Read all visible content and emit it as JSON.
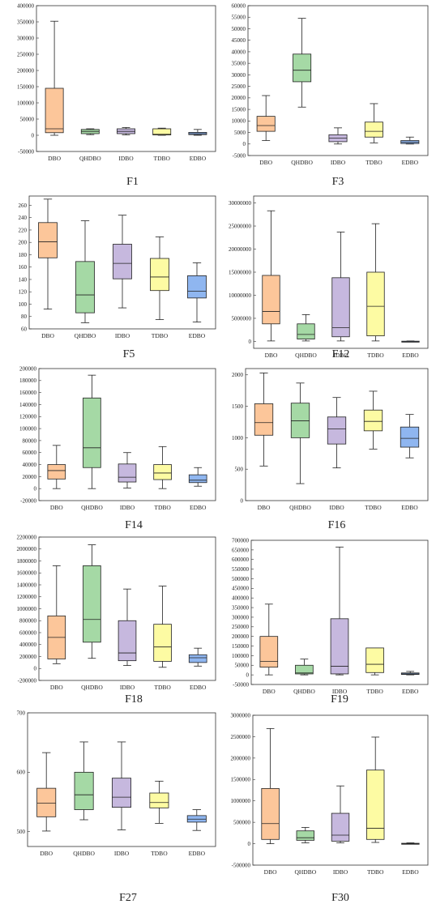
{
  "chart_data": [
    {
      "type": "box",
      "caption": "F1",
      "categories": [
        "DBO",
        "QHDBO",
        "IDBO",
        "TDBO",
        "EDBO"
      ],
      "yticks": [
        -50000,
        0,
        50000,
        100000,
        150000,
        200000,
        250000,
        300000,
        350000,
        400000
      ],
      "ylim": [
        -50000,
        400000
      ],
      "boxes": [
        {
          "name": "DBO",
          "min": 0,
          "q1": 8000,
          "median": 20000,
          "q3": 145000,
          "max": 352000
        },
        {
          "name": "QHDBO",
          "min": 2000,
          "q1": 5000,
          "median": 12000,
          "q3": 18000,
          "max": 20000
        },
        {
          "name": "IDBO",
          "min": 1000,
          "q1": 5000,
          "median": 12000,
          "q3": 20000,
          "max": 24000
        },
        {
          "name": "TDBO",
          "min": 0,
          "q1": 1000,
          "median": 3000,
          "q3": 20000,
          "max": 22000
        },
        {
          "name": "EDBO",
          "min": 0,
          "q1": 2000,
          "median": 5000,
          "q3": 9000,
          "max": 18000
        }
      ]
    },
    {
      "type": "box",
      "caption": "F3",
      "categories": [
        "DBO",
        "QHDBO",
        "IDBO",
        "TDBO",
        "EDBO"
      ],
      "yticks": [
        -5000,
        0,
        5000,
        10000,
        15000,
        20000,
        25000,
        30000,
        35000,
        40000,
        45000,
        50000,
        55000,
        60000
      ],
      "ylim": [
        -5000,
        60000
      ],
      "boxes": [
        {
          "name": "DBO",
          "min": 1500,
          "q1": 5500,
          "median": 8000,
          "q3": 12000,
          "max": 21000
        },
        {
          "name": "QHDBO",
          "min": 16000,
          "q1": 27000,
          "median": 32000,
          "q3": 39000,
          "max": 54500
        },
        {
          "name": "IDBO",
          "min": 0,
          "q1": 1000,
          "median": 2500,
          "q3": 4000,
          "max": 7000
        },
        {
          "name": "TDBO",
          "min": 500,
          "q1": 3000,
          "median": 5500,
          "q3": 9500,
          "max": 17500
        },
        {
          "name": "EDBO",
          "min": 0,
          "q1": 200,
          "median": 800,
          "q3": 1500,
          "max": 3000
        }
      ]
    },
    {
      "type": "box",
      "caption": "F5",
      "categories": [
        "DBO",
        "QHDBO",
        "IDBO",
        "TDBO",
        "EDBO"
      ],
      "yticks": [
        60,
        80,
        100,
        120,
        140,
        160,
        180,
        200,
        220,
        240,
        260
      ],
      "ylim": [
        60,
        275
      ],
      "boxes": [
        {
          "name": "DBO",
          "min": 92,
          "q1": 175,
          "median": 201,
          "q3": 232,
          "max": 270
        },
        {
          "name": "QHDBO",
          "min": 70,
          "q1": 86,
          "median": 115,
          "q3": 169,
          "max": 235
        },
        {
          "name": "IDBO",
          "min": 94,
          "q1": 141,
          "median": 166,
          "q3": 197,
          "max": 244
        },
        {
          "name": "TDBO",
          "min": 75,
          "q1": 122,
          "median": 144,
          "q3": 174,
          "max": 209
        },
        {
          "name": "EDBO",
          "min": 71,
          "q1": 110,
          "median": 121,
          "q3": 146,
          "max": 167
        }
      ]
    },
    {
      "type": "box",
      "caption": "F12",
      "categories": [
        "DBO",
        "QHDBO",
        "IDBO",
        "TDBO",
        "EDBO"
      ],
      "yticks": [
        0,
        5000000,
        10000000,
        15000000,
        20000000,
        25000000,
        30000000
      ],
      "ylim": [
        -1500000,
        31500000
      ],
      "boxes": [
        {
          "name": "DBO",
          "min": 100000,
          "q1": 3800000,
          "median": 6500000,
          "q3": 14300000,
          "max": 28300000
        },
        {
          "name": "QHDBO",
          "min": 100000,
          "q1": 500000,
          "median": 1500000,
          "q3": 3800000,
          "max": 5800000
        },
        {
          "name": "IDBO",
          "min": 100000,
          "q1": 1000000,
          "median": 3000000,
          "q3": 13800000,
          "max": 23700000
        },
        {
          "name": "TDBO",
          "min": 100000,
          "q1": 1200000,
          "median": 7600000,
          "q3": 15000000,
          "max": 25500000
        },
        {
          "name": "EDBO",
          "min": 0,
          "q1": 0,
          "median": 0,
          "q3": 50000,
          "max": 100000
        }
      ]
    },
    {
      "type": "box",
      "caption": "F14",
      "categories": [
        "DBO",
        "QHDBO",
        "IDBO",
        "TDBO",
        "EDBO"
      ],
      "yticks": [
        -20000,
        0,
        20000,
        40000,
        60000,
        80000,
        100000,
        120000,
        140000,
        160000,
        180000,
        200000
      ],
      "ylim": [
        -20000,
        200000
      ],
      "boxes": [
        {
          "name": "DBO",
          "min": 0,
          "q1": 16000,
          "median": 30000,
          "q3": 40000,
          "max": 72000
        },
        {
          "name": "QHDBO",
          "min": 0,
          "q1": 35000,
          "median": 68000,
          "q3": 151000,
          "max": 189000
        },
        {
          "name": "IDBO",
          "min": 1000,
          "q1": 11000,
          "median": 19000,
          "q3": 41000,
          "max": 60000
        },
        {
          "name": "TDBO",
          "min": 0,
          "q1": 15000,
          "median": 26000,
          "q3": 40000,
          "max": 70000
        },
        {
          "name": "EDBO",
          "min": 4000,
          "q1": 10000,
          "median": 14000,
          "q3": 23000,
          "max": 35000
        }
      ]
    },
    {
      "type": "box",
      "caption": "F16",
      "categories": [
        "DBO",
        "QHDBO",
        "IDBO",
        "TDBO",
        "EDBO"
      ],
      "yticks": [
        0,
        500,
        1000,
        1500,
        2000
      ],
      "ylim": [
        0,
        2100
      ],
      "boxes": [
        {
          "name": "DBO",
          "min": 550,
          "q1": 1040,
          "median": 1240,
          "q3": 1540,
          "max": 2030
        },
        {
          "name": "QHDBO",
          "min": 270,
          "q1": 1000,
          "median": 1270,
          "q3": 1550,
          "max": 1870
        },
        {
          "name": "IDBO",
          "min": 520,
          "q1": 900,
          "median": 1140,
          "q3": 1330,
          "max": 1640
        },
        {
          "name": "TDBO",
          "min": 820,
          "q1": 1110,
          "median": 1260,
          "q3": 1440,
          "max": 1740
        },
        {
          "name": "EDBO",
          "min": 680,
          "q1": 850,
          "median": 990,
          "q3": 1170,
          "max": 1370
        }
      ]
    },
    {
      "type": "box",
      "caption": "F18",
      "categories": [
        "DBO",
        "QHDBO",
        "IDBO",
        "TDBO",
        "EDBO"
      ],
      "yticks": [
        -200000,
        0,
        200000,
        400000,
        600000,
        800000,
        1000000,
        1200000,
        1400000,
        1600000,
        1800000,
        2000000,
        2200000
      ],
      "ylim": [
        -200000,
        2200000
      ],
      "boxes": [
        {
          "name": "DBO",
          "min": 80000,
          "q1": 160000,
          "median": 520000,
          "q3": 880000,
          "max": 1720000
        },
        {
          "name": "QHDBO",
          "min": 170000,
          "q1": 440000,
          "median": 820000,
          "q3": 1720000,
          "max": 2070000
        },
        {
          "name": "IDBO",
          "min": 50000,
          "q1": 130000,
          "median": 260000,
          "q3": 800000,
          "max": 1330000
        },
        {
          "name": "TDBO",
          "min": 20000,
          "q1": 120000,
          "median": 360000,
          "q3": 740000,
          "max": 1380000
        },
        {
          "name": "EDBO",
          "min": 40000,
          "q1": 100000,
          "median": 180000,
          "q3": 230000,
          "max": 340000
        }
      ]
    },
    {
      "type": "box",
      "caption": "F19",
      "categories": [
        "DBO",
        "QHDBO",
        "IDBO",
        "TDBO",
        "EDBO"
      ],
      "yticks": [
        -50000,
        0,
        50000,
        100000,
        150000,
        200000,
        250000,
        300000,
        350000,
        400000,
        450000,
        500000,
        550000,
        600000,
        650000,
        700000
      ],
      "ylim": [
        -50000,
        700000
      ],
      "boxes": [
        {
          "name": "DBO",
          "min": 0,
          "q1": 40000,
          "median": 70000,
          "q3": 200000,
          "max": 368000
        },
        {
          "name": "QHDBO",
          "min": 0,
          "q1": 5000,
          "median": 10000,
          "q3": 50000,
          "max": 82000
        },
        {
          "name": "IDBO",
          "min": 0,
          "q1": 5000,
          "median": 45000,
          "q3": 292000,
          "max": 665000
        },
        {
          "name": "TDBO",
          "min": 0,
          "q1": 12000,
          "median": 55000,
          "q3": 140000,
          "max": 140000
        },
        {
          "name": "EDBO",
          "min": 0,
          "q1": 2000,
          "median": 5000,
          "q3": 10000,
          "max": 18000
        }
      ]
    },
    {
      "type": "box",
      "caption": "F27",
      "categories": [
        "DBO",
        "QHDBO",
        "IDBO",
        "TDBO",
        "EDBO"
      ],
      "yticks": [
        500,
        600,
        700
      ],
      "ylim": [
        475,
        700
      ],
      "boxes": [
        {
          "name": "DBO",
          "min": 501,
          "q1": 525,
          "median": 548,
          "q3": 573,
          "max": 633
        },
        {
          "name": "QHDBO",
          "min": 520,
          "q1": 537,
          "median": 562,
          "q3": 600,
          "max": 651
        },
        {
          "name": "IDBO",
          "min": 503,
          "q1": 541,
          "median": 558,
          "q3": 590,
          "max": 651
        },
        {
          "name": "TDBO",
          "min": 514,
          "q1": 540,
          "median": 549,
          "q3": 565,
          "max": 585
        },
        {
          "name": "EDBO",
          "min": 502,
          "q1": 516,
          "median": 521,
          "q3": 527,
          "max": 537
        }
      ]
    },
    {
      "type": "box",
      "caption": "F30",
      "categories": [
        "DBO",
        "QHDBO",
        "IDBO",
        "TDBO",
        "EDBO"
      ],
      "yticks": [
        -500000,
        0,
        500000,
        1000000,
        1500000,
        2000000,
        2500000,
        3000000
      ],
      "ylim": [
        -500000,
        3000000
      ],
      "boxes": [
        {
          "name": "DBO",
          "min": 0,
          "q1": 100000,
          "median": 470000,
          "q3": 1290000,
          "max": 2690000
        },
        {
          "name": "QHDBO",
          "min": 20000,
          "q1": 80000,
          "median": 140000,
          "q3": 300000,
          "max": 380000
        },
        {
          "name": "IDBO",
          "min": 20000,
          "q1": 60000,
          "median": 200000,
          "q3": 710000,
          "max": 1350000
        },
        {
          "name": "TDBO",
          "min": 30000,
          "q1": 100000,
          "median": 360000,
          "q3": 1720000,
          "max": 2490000
        },
        {
          "name": "EDBO",
          "min": 0,
          "q1": 0,
          "median": 0,
          "q3": 10000,
          "max": 20000
        }
      ]
    }
  ],
  "box_colors": {
    "DBO": "#fcc69a",
    "QHDBO": "#a5d9a5",
    "IDBO": "#c6b8de",
    "TDBO": "#fdfba3",
    "EDBO": "#8fb6f0"
  }
}
